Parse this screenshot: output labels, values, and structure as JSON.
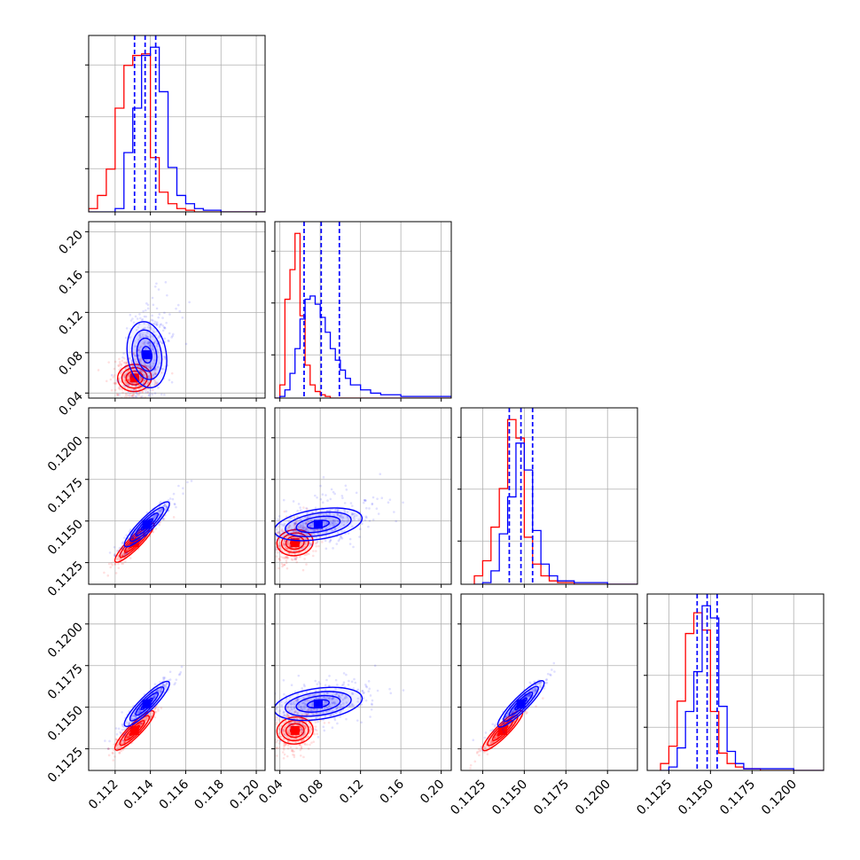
{
  "chart_data": {
    "type": "corner",
    "grid": true,
    "colors": {
      "series_a": "#0000ff",
      "series_b": "#ff0000"
    },
    "series": [
      {
        "color": "#0000ff"
      },
      {
        "color": "#ff0000"
      }
    ],
    "parameters": [
      {
        "range": [
          0.1105,
          0.1205
        ],
        "tick_labels": [
          "0.112",
          "0.114",
          "0.116",
          "0.118",
          "0.120"
        ],
        "tick_values": [
          0.112,
          0.114,
          0.116,
          0.118,
          0.12
        ],
        "quantiles": [
          0.1131,
          0.1137,
          0.1143
        ]
      },
      {
        "range": [
          0.035,
          0.21
        ],
        "tick_labels": [
          "0.04",
          "0.08",
          "0.12",
          "0.16",
          "0.20"
        ],
        "tick_values": [
          0.04,
          0.08,
          0.12,
          0.16,
          0.2
        ],
        "quantiles": [
          0.064,
          0.081,
          0.099
        ]
      },
      {
        "range": [
          0.1112,
          0.1218
        ],
        "tick_labels": [
          "0.1125",
          "0.1150",
          "0.1175",
          "0.1200"
        ],
        "tick_values": [
          0.1125,
          0.115,
          0.1175,
          0.12
        ],
        "quantiles": [
          0.1141,
          0.1148,
          0.1155
        ]
      },
      {
        "range": [
          0.1112,
          0.1218
        ],
        "tick_labels": [
          "0.1125",
          "0.1150",
          "0.1175",
          "0.1200"
        ],
        "tick_values": [
          0.1125,
          0.115,
          0.1175,
          0.12
        ],
        "quantiles": [
          0.1142,
          0.1148,
          0.1154
        ]
      }
    ],
    "histograms": [
      {
        "bin_edges": [
          0.1105,
          0.111,
          0.1115,
          0.112,
          0.1125,
          0.113,
          0.1135,
          0.114,
          0.1145,
          0.115,
          0.1155,
          0.116,
          0.1165,
          0.117,
          0.118,
          0.1205
        ],
        "blue": [
          0,
          0,
          0,
          2,
          36,
          63,
          95,
          100,
          73,
          27,
          10,
          5,
          2,
          1,
          0
        ],
        "red": [
          2,
          10,
          26,
          63,
          89,
          95,
          96,
          33,
          12,
          5,
          2,
          1,
          0,
          0,
          0
        ]
      },
      {
        "bin_edges": [
          0.035,
          0.04,
          0.045,
          0.05,
          0.055,
          0.06,
          0.065,
          0.07,
          0.075,
          0.08,
          0.085,
          0.09,
          0.095,
          0.1,
          0.105,
          0.11,
          0.12,
          0.13,
          0.14,
          0.16,
          0.21
        ],
        "blue": [
          0,
          1,
          5,
          15,
          30,
          48,
          60,
          62,
          57,
          49,
          40,
          30,
          23,
          17,
          12,
          8,
          5,
          3,
          2,
          1
        ],
        "red": [
          0,
          8,
          60,
          78,
          100,
          50,
          20,
          8,
          4,
          2,
          1,
          0,
          0,
          0,
          0,
          0,
          0,
          0,
          0,
          0
        ]
      },
      {
        "bin_edges": [
          0.112,
          0.1125,
          0.113,
          0.1135,
          0.114,
          0.1145,
          0.115,
          0.1155,
          0.116,
          0.1165,
          0.117,
          0.118,
          0.12,
          0.1218
        ],
        "blue": [
          0,
          1,
          8,
          30,
          52,
          84,
          68,
          32,
          12,
          5,
          2,
          1,
          0
        ],
        "red": [
          5,
          14,
          34,
          57,
          98,
          87,
          28,
          12,
          5,
          2,
          1,
          0,
          0
        ]
      },
      {
        "bin_edges": [
          0.112,
          0.1125,
          0.113,
          0.1135,
          0.114,
          0.1145,
          0.115,
          0.1155,
          0.116,
          0.1165,
          0.117,
          0.118,
          0.12,
          0.1218
        ],
        "blue": [
          0,
          2,
          13,
          34,
          57,
          95,
          88,
          37,
          11,
          4,
          1,
          1,
          0
        ],
        "red": [
          4,
          14,
          40,
          79,
          91,
          81,
          34,
          10,
          4,
          2,
          1,
          0,
          0
        ]
      }
    ],
    "joint": {
      "blue_peak": [
        0.1138,
        0.078,
        0.1148,
        0.1152
      ],
      "red_peak": [
        0.1131,
        0.055,
        0.1137,
        0.1136
      ],
      "blue_sd": [
        0.00055,
        0.022,
        0.0006,
        0.00062
      ],
      "red_sd": [
        0.00048,
        0.009,
        0.00052,
        0.00054
      ],
      "blue_corr": {
        "1-0": 0.45,
        "2-0": 0.95,
        "2-1": 0.45,
        "3-0": 0.95,
        "3-1": 0.4,
        "3-2": 0.97
      },
      "red_corr": {
        "1-0": 0.15,
        "2-0": 0.95,
        "2-1": 0.3,
        "3-0": 0.95,
        "3-1": 0.3,
        "3-2": 0.97
      }
    }
  }
}
